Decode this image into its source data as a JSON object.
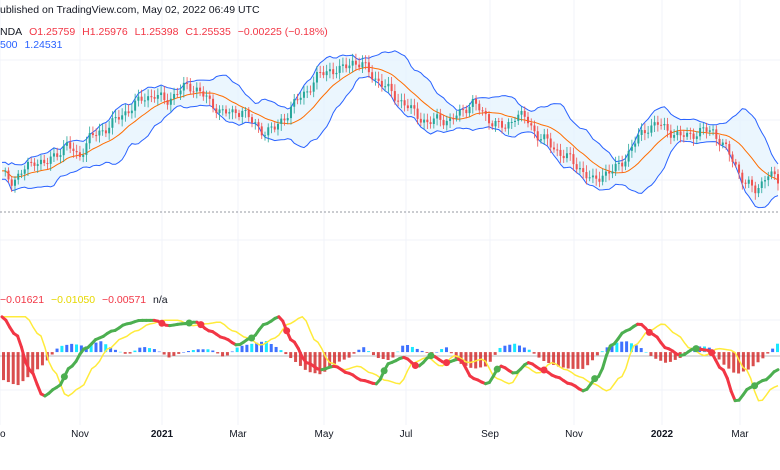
{
  "header": {
    "published": "ublished on TradingView.com, May 02, 2022 06:49 UTC"
  },
  "symbol_line": {
    "symbol": "NDA",
    "open": "O1.25759",
    "high": "H1.25976",
    "low": "L1.25398",
    "close": "C1.25535",
    "change": "−0.00225 (−0.18%)"
  },
  "bb_line": {
    "length": "500",
    "value": "1.24531"
  },
  "osc_line": {
    "v1": "−0.01621",
    "v2": "−0.01050",
    "v3": "−0.00571",
    "v4": "n/a"
  },
  "x_axis": {
    "labels": [
      "o",
      "Nov",
      "2021",
      "Mar",
      "May",
      "Jul",
      "Sep",
      "Nov",
      "2022",
      "Mar"
    ]
  },
  "colors": {
    "band": "#2962ff",
    "band_fill": "#e3f2fd",
    "basis": "#ff6d00",
    "candle_up": "#26a69a",
    "candle_down": "#ef5350",
    "osc_red": "#f23645",
    "osc_green": "#4caf50",
    "osc_yellow": "#ffeb3b",
    "hist_red": "#d32f2f",
    "hist_blue": "#2962ff",
    "hist_cyan": "#00e5ff"
  },
  "chart_data": {
    "type": "line",
    "price_path": [
      1.17,
      1.165,
      1.172,
      1.18,
      1.176,
      1.185,
      1.19,
      1.182,
      1.195,
      1.2,
      1.205,
      1.212,
      1.218,
      1.224,
      1.226,
      1.221,
      1.228,
      1.232,
      1.23,
      1.22,
      1.215,
      1.212,
      1.216,
      1.205,
      1.2,
      1.202,
      1.212,
      1.222,
      1.23,
      1.24,
      1.244,
      1.243,
      1.25,
      1.247,
      1.239,
      1.232,
      1.225,
      1.218,
      1.212,
      1.205,
      1.21,
      1.207,
      1.214,
      1.221,
      1.213,
      1.206,
      1.202,
      1.212,
      1.209,
      1.197,
      1.192,
      1.185,
      1.18,
      1.173,
      1.164,
      1.17,
      1.172,
      1.181,
      1.193,
      1.203,
      1.205,
      1.201,
      1.196,
      1.198,
      1.2,
      1.201,
      1.19,
      1.178,
      1.163,
      1.158,
      1.17,
      1.165
    ],
    "osc_fast": [
      0.02,
      0.01,
      -0.01,
      -0.025,
      -0.02,
      -0.008,
      0.002,
      0.008,
      0.012,
      0.016,
      0.018,
      0.018,
      0.015,
      0.016,
      0.017,
      0.012,
      0.008,
      0.004,
      0.008,
      0.016,
      0.02,
      0.006,
      -0.006,
      -0.01,
      -0.008,
      -0.012,
      -0.016,
      -0.018,
      -0.006,
      -0.003,
      -0.008,
      -0.002,
      -0.006,
      -0.004,
      -0.015,
      -0.018,
      -0.008,
      -0.012,
      -0.006,
      -0.01,
      -0.014,
      -0.018,
      -0.022,
      -0.014,
      0.004,
      0.012,
      0.016,
      0.01,
      0.002,
      -0.002,
      0.002,
      0.001,
      -0.01,
      -0.028,
      -0.02,
      -0.016,
      -0.01
    ],
    "hist": [
      -0.02,
      -0.024,
      -0.016,
      -0.008,
      0.004,
      0.006,
      0.004,
      0.008,
      0.002,
      -0.002,
      0.004,
      0.002,
      -0.004,
      0.0,
      0.002,
      0.002,
      -0.004,
      0.004,
      0.006,
      0.008,
      0.002,
      -0.006,
      -0.014,
      -0.016,
      -0.008,
      -0.004,
      0.004,
      -0.004,
      -0.006,
      0.006,
      0.002,
      -0.002,
      0.004,
      -0.008,
      -0.012,
      -0.01,
      0.004,
      0.006,
      0.002,
      -0.006,
      -0.01,
      -0.012,
      -0.012,
      -0.002,
      0.006,
      0.008,
      0.004,
      -0.004,
      -0.008,
      -0.004,
      0.004,
      0.004,
      -0.008,
      -0.016,
      -0.012,
      -0.004,
      0.006
    ]
  }
}
